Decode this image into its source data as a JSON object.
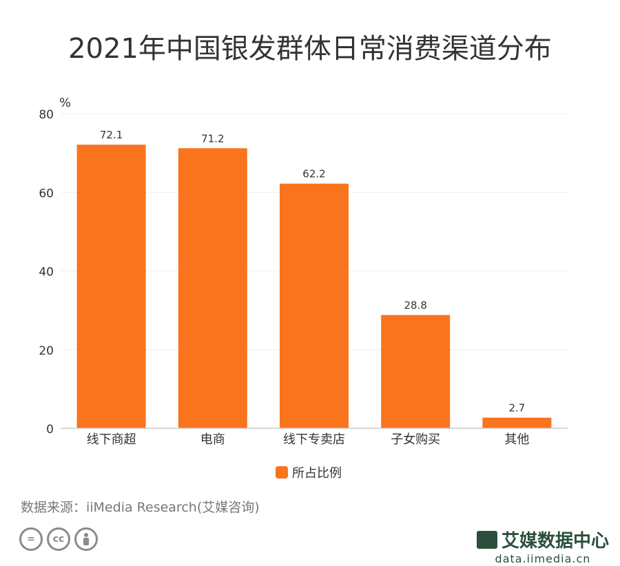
{
  "title": "2021年中国银发群体日常消费渠道分布",
  "source": "数据来源：iiMedia Research(艾媒咨询)",
  "branding": {
    "logo_name": "艾媒数据中心",
    "logo_url": "data.iimedia.cn"
  },
  "colors": {
    "bar": "#fa731d",
    "axis": "#cccccc",
    "grid": "#eeeeee",
    "text": "#333333"
  },
  "chart_data": {
    "type": "bar",
    "title": "2021年中国银发群体日常消费渠道分布",
    "ylabel": "%",
    "xlabel": "",
    "categories": [
      "线下商超",
      "电商",
      "线下专卖店",
      "子女购买",
      "其他"
    ],
    "series": [
      {
        "name": "所占比例",
        "values": [
          72.1,
          71.2,
          62.2,
          28.8,
          2.7
        ]
      }
    ],
    "ylim": [
      0,
      80
    ],
    "yticks": [
      0,
      20,
      40,
      60,
      80
    ],
    "grid": true,
    "legend": "bottom-center",
    "data_labels": true
  }
}
